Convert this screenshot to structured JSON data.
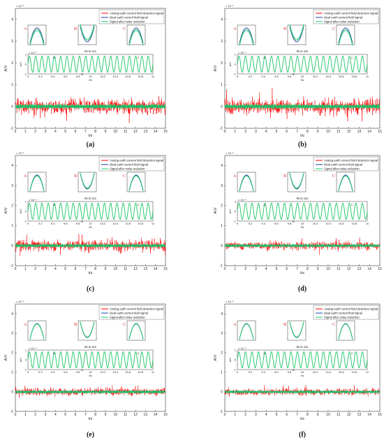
{
  "figure": {
    "panels": [
      {
        "caption": "(a)",
        "id": "a"
      },
      {
        "caption": "(b)",
        "id": "b"
      },
      {
        "caption": "(c)",
        "id": "c"
      },
      {
        "caption": "(d)",
        "id": "d"
      },
      {
        "caption": "(e)",
        "id": "e"
      },
      {
        "caption": "(f)",
        "id": "f"
      }
    ]
  },
  "chart_data": {
    "type": "line",
    "xlabel": "t/s",
    "ylabel": "A/V",
    "y_exponent": "× 10⁻³",
    "xlim": [
      0,
      15
    ],
    "ylim": [
      -1,
      4.5
    ],
    "xticks": [
      0,
      1,
      2,
      3,
      4,
      5,
      6,
      7,
      8,
      9,
      10,
      11,
      12,
      13,
      14,
      15
    ],
    "yticks": [
      -1,
      0,
      1,
      2,
      3,
      4
    ],
    "series": [
      {
        "name": "Analog earth current field detection signal",
        "color": "#ff0000"
      },
      {
        "name": "Ideal earth current field signal",
        "color": "#1f3fa0"
      },
      {
        "name": "Signal after noise reduction",
        "color": "#22cc66"
      }
    ],
    "inset": {
      "title": "9s to 11s",
      "xlabel": "t/s",
      "ylabel": "A/V",
      "y_exponent": "× 10⁻⁴",
      "xlim": [
        9,
        11
      ],
      "ylim": [
        -1,
        1
      ],
      "xticks": [
        "9",
        "9.2",
        "9.4",
        "9.6",
        "9.8",
        "10",
        "10.2",
        "10.4",
        "10.6",
        "10.8",
        "11"
      ],
      "yticks": [
        "-1",
        "0",
        "1"
      ],
      "cycles": 20
    },
    "zoom_labels": [
      "A",
      "B",
      "C"
    ],
    "noise_amplitude_red": [
      1.0,
      1.0,
      0.8,
      0.6,
      0.55,
      0.5
    ],
    "noise_amplitude_green": [
      0.15,
      0.15,
      0.12,
      0.1,
      0.1,
      0.09
    ]
  }
}
